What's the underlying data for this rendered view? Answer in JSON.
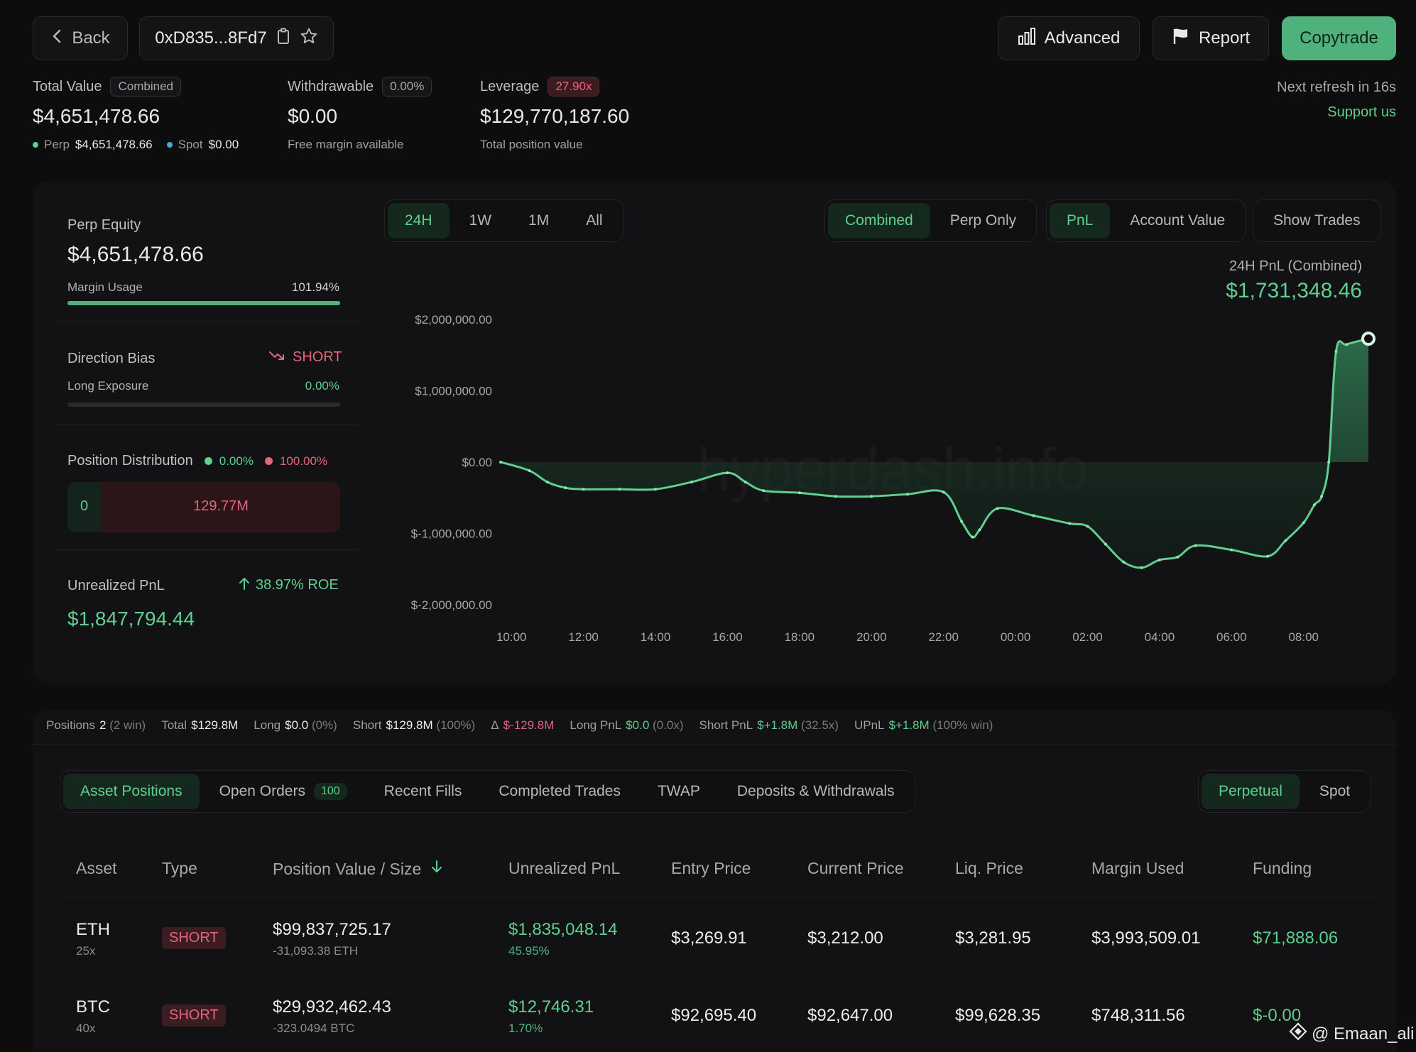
{
  "header": {
    "back_label": "Back",
    "address": "0xD835...8Fd7",
    "advanced_label": "Advanced",
    "report_label": "Report",
    "copytrade_label": "Copytrade"
  },
  "stats": {
    "total_value_label": "Total Value",
    "total_value_tag": "Combined",
    "total_value": "$4,651,478.66",
    "perp_label": "Perp",
    "perp_value": "$4,651,478.66",
    "spot_label": "Spot",
    "spot_value": "$0.00",
    "withdrawable_label": "Withdrawable",
    "withdrawable_tag": "0.00%",
    "withdrawable_value": "$0.00",
    "withdrawable_sub": "Free margin available",
    "leverage_label": "Leverage",
    "leverage_tag": "27.90x",
    "leverage_value": "$129,770,187.60",
    "leverage_sub": "Total position value",
    "refresh_text": "Next refresh in 16s",
    "support_label": "Support us"
  },
  "left_panel": {
    "perp_equity_label": "Perp Equity",
    "perp_equity_value": "$4,651,478.66",
    "margin_usage_label": "Margin Usage",
    "margin_usage_value": "101.94%",
    "margin_usage_fraction": 1.0,
    "direction_bias_label": "Direction Bias",
    "direction_bias_value": "SHORT",
    "long_exposure_label": "Long Exposure",
    "long_exposure_value": "0.00%",
    "long_exposure_fraction": 0.0,
    "position_distribution_label": "Position Distribution",
    "dist_long_pct": "0.00%",
    "dist_short_pct": "100.00%",
    "dist_long_value": "0",
    "dist_short_value": "129.77M",
    "upnl_label": "Unrealized PnL",
    "upnl_roe": "38.97% ROE",
    "upnl_value": "$1,847,794.44"
  },
  "chart_controls": {
    "ranges": [
      "24H",
      "1W",
      "1M",
      "All"
    ],
    "mode": [
      "Combined",
      "Perp Only"
    ],
    "metric": [
      "PnL",
      "Account Value"
    ],
    "show_trades_label": "Show Trades",
    "summary_label": "24H PnL (Combined)",
    "summary_value": "$1,731,348.46",
    "watermark": "hyperdash.info"
  },
  "chart_data": {
    "type": "area",
    "title": "24H PnL (Combined)",
    "yticks": [
      "$2,000,000.00",
      "$1,000,000.00",
      "$0.00",
      "$-1,000,000.00",
      "$-2,000,000.00"
    ],
    "ylim": [
      -2000000,
      2000000
    ],
    "xticks": [
      "10:00",
      "12:00",
      "14:00",
      "16:00",
      "18:00",
      "20:00",
      "22:00",
      "00:00",
      "02:00",
      "04:00",
      "06:00",
      "08:00"
    ],
    "xlim": [
      9.7,
      33.8
    ],
    "x": [
      9.7,
      10.5,
      11.0,
      11.5,
      12.0,
      13.0,
      14.0,
      15.0,
      16.0,
      16.5,
      17.0,
      18.0,
      19.0,
      20.0,
      21.0,
      22.0,
      22.5,
      22.8,
      23.0,
      23.5,
      24.5,
      25.5,
      26.0,
      26.5,
      27.0,
      27.5,
      28.0,
      28.5,
      29.0,
      30.0,
      31.0,
      31.5,
      32.0,
      32.3,
      32.5,
      32.7,
      32.9,
      33.2,
      33.8
    ],
    "y": [
      0,
      -120000,
      -280000,
      -360000,
      -380000,
      -380000,
      -380000,
      -280000,
      -150000,
      -280000,
      -400000,
      -430000,
      -480000,
      -480000,
      -450000,
      -420000,
      -830000,
      -1050000,
      -950000,
      -650000,
      -750000,
      -860000,
      -900000,
      -1150000,
      -1400000,
      -1480000,
      -1370000,
      -1330000,
      -1170000,
      -1230000,
      -1320000,
      -1100000,
      -850000,
      -600000,
      -480000,
      0,
      1550000,
      1650000,
      1730000
    ],
    "series_name": "PnL",
    "line_color": "#5fcf8f"
  },
  "summary_bar": {
    "positions_label": "Positions",
    "positions_value": "2",
    "positions_win": "(2 win)",
    "total_label": "Total",
    "total_value": "$129.8M",
    "long_label": "Long",
    "long_value": "$0.0",
    "long_pct": "(0%)",
    "short_label": "Short",
    "short_value": "$129.8M",
    "short_pct": "(100%)",
    "delta_label": "Δ",
    "delta_value": "$-129.8M",
    "long_pnl_label": "Long PnL",
    "long_pnl_value": "$0.0",
    "long_pnl_x": "(0.0x)",
    "short_pnl_label": "Short PnL",
    "short_pnl_value": "$+1.8M",
    "short_pnl_x": "(32.5x)",
    "upnl_label": "UPnL",
    "upnl_value": "$+1.8M",
    "upnl_win": "(100% win)"
  },
  "tabs": {
    "items": [
      "Asset Positions",
      "Open Orders",
      "Recent Fills",
      "Completed Trades",
      "TWAP",
      "Deposits & Withdrawals"
    ],
    "open_orders_count": "100",
    "market": [
      "Perpetual",
      "Spot"
    ]
  },
  "table": {
    "headers": [
      "Asset",
      "Type",
      "Position Value / Size",
      "Unrealized PnL",
      "Entry Price",
      "Current Price",
      "Liq. Price",
      "Margin Used",
      "Funding"
    ],
    "rows": [
      {
        "asset": "ETH",
        "lev": "25x",
        "type": "SHORT",
        "value": "$99,837,725.17",
        "size": "-31,093.38 ETH",
        "upnl": "$1,835,048.14",
        "upnl_pct": "45.95%",
        "entry": "$3,269.91",
        "current": "$3,212.00",
        "liq": "$3,281.95",
        "margin": "$3,993,509.01",
        "funding": "$71,888.06"
      },
      {
        "asset": "BTC",
        "lev": "40x",
        "type": "SHORT",
        "value": "$29,932,462.43",
        "size": "-323.0494 BTC",
        "upnl": "$12,746.31",
        "upnl_pct": "1.70%",
        "entry": "$92,695.40",
        "current": "$92,647.00",
        "liq": "$99,628.35",
        "margin": "$748,311.56",
        "funding": "$-0.00"
      }
    ]
  },
  "credit": "@ Emaan_ali",
  "colors": {
    "accent": "#5fcf8f",
    "negative": "#e0687a",
    "background": "#0d0d0e"
  }
}
